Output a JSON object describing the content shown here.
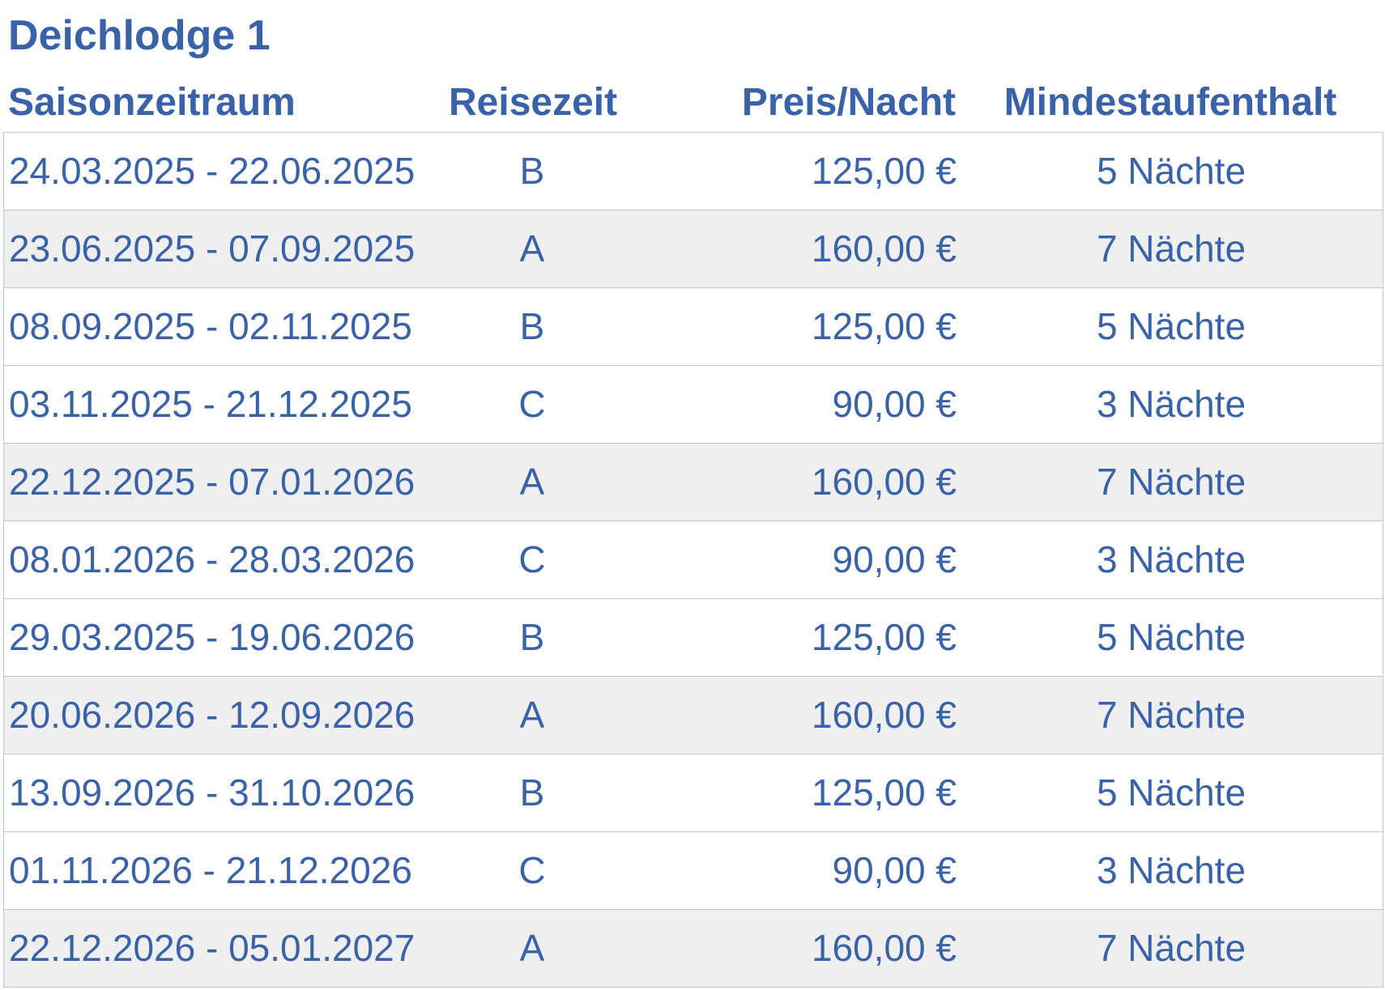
{
  "title": "Deichlodge 1",
  "colors": {
    "text": "#3a62a8",
    "row_alt_bg": "#efefef",
    "border": "#b9c6dc"
  },
  "table": {
    "headers": {
      "season": "Saisonzeitraum",
      "travel": "Reisezeit",
      "price": "Preis/Nacht",
      "min_stay": "Mindestaufenthalt"
    },
    "rows": [
      {
        "season": "24.03.2025 - 22.06.2025",
        "travel": "B",
        "price": "125,00 €",
        "min_stay": "5 Nächte"
      },
      {
        "season": "23.06.2025 - 07.09.2025",
        "travel": "A",
        "price": "160,00 €",
        "min_stay": "7 Nächte"
      },
      {
        "season": "08.09.2025 - 02.11.2025",
        "travel": "B",
        "price": "125,00 €",
        "min_stay": "5 Nächte"
      },
      {
        "season": "03.11.2025 - 21.12.2025",
        "travel": "C",
        "price": "90,00 €",
        "min_stay": "3 Nächte"
      },
      {
        "season": "22.12.2025 - 07.01.2026",
        "travel": "A",
        "price": "160,00 €",
        "min_stay": "7 Nächte"
      },
      {
        "season": "08.01.2026 - 28.03.2026",
        "travel": "C",
        "price": "90,00 €",
        "min_stay": "3 Nächte"
      },
      {
        "season": "29.03.2025 - 19.06.2026",
        "travel": "B",
        "price": "125,00 €",
        "min_stay": "5 Nächte"
      },
      {
        "season": "20.06.2026 - 12.09.2026",
        "travel": "A",
        "price": "160,00 €",
        "min_stay": "7 Nächte"
      },
      {
        "season": "13.09.2026 - 31.10.2026",
        "travel": "B",
        "price": "125,00 €",
        "min_stay": "5 Nächte"
      },
      {
        "season": "01.11.2026 - 21.12.2026",
        "travel": "C",
        "price": "90,00 €",
        "min_stay": "3 Nächte"
      },
      {
        "season": "22.12.2026 - 05.01.2027",
        "travel": "A",
        "price": "160,00 €",
        "min_stay": "7 Nächte"
      }
    ]
  }
}
